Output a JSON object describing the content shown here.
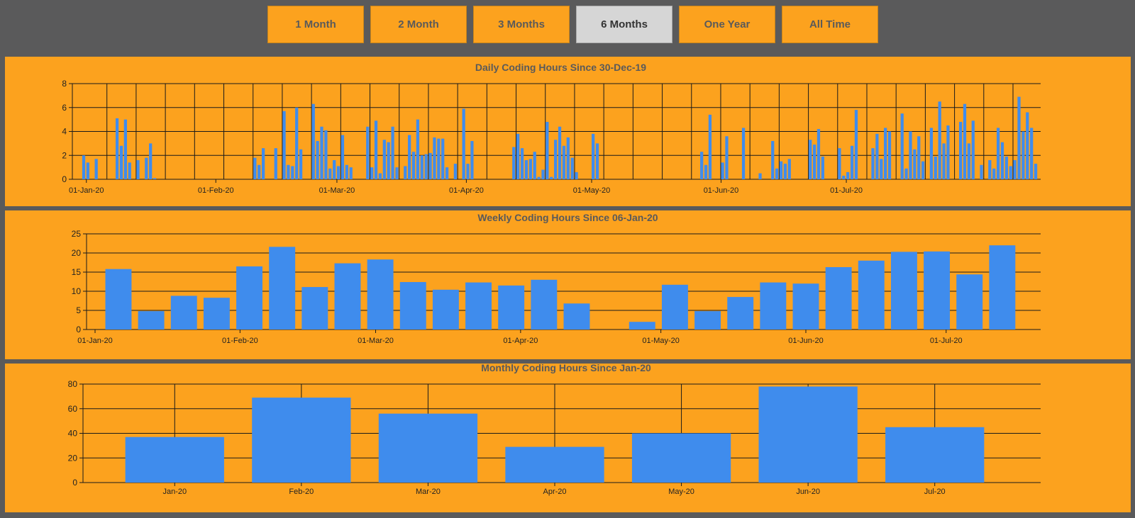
{
  "range_buttons": [
    {
      "label": "1 Month",
      "active": false
    },
    {
      "label": "2 Month",
      "active": false
    },
    {
      "label": "3 Months",
      "active": false
    },
    {
      "label": "6 Months",
      "active": true
    },
    {
      "label": "One Year",
      "active": false
    },
    {
      "label": "All Time",
      "active": false
    }
  ],
  "colors": {
    "background": "#5a5a5b",
    "panel": "#fca21e",
    "bar": "#3f8ced",
    "button_active": "#d6d6d6",
    "text": "#5a5a5a"
  },
  "chart_data": [
    {
      "type": "bar",
      "title": "Daily Coding Hours Since 30-Dec-19",
      "x_start": "2019-12-30",
      "x_tick_labels": [
        "01-Jan-20",
        "01-Feb-20",
        "01-Mar-20",
        "01-Apr-20",
        "01-May-20",
        "01-Jun-20",
        "01-Jul-20"
      ],
      "ylim": [
        0,
        8
      ],
      "yticks": [
        0,
        2,
        4,
        6,
        8
      ],
      "grid": true,
      "values": [
        0,
        2,
        1.4,
        0,
        1.7,
        0,
        0,
        0,
        0,
        5.1,
        2.8,
        5,
        1.4,
        0,
        1.6,
        0,
        1.8,
        3,
        0.1,
        0,
        0,
        0,
        0,
        0,
        0,
        0,
        0,
        0,
        0,
        0,
        0,
        0,
        0,
        0,
        0,
        0,
        0,
        0,
        0,
        0,
        0,
        0,
        1.8,
        1.2,
        2.6,
        0,
        0,
        2.6,
        0,
        5.7,
        1.2,
        1.1,
        6,
        2.5,
        0,
        0,
        6.3,
        3.2,
        4.4,
        4.1,
        0.9,
        1.6,
        1.1,
        3.7,
        1.2,
        1,
        0,
        0,
        0,
        4.4,
        1,
        4.9,
        0.5,
        3.3,
        3.1,
        4.4,
        1,
        0,
        1.1,
        3.7,
        2.3,
        5,
        2,
        2.1,
        2.2,
        3.5,
        3.4,
        3.4,
        1,
        0,
        1.3,
        0,
        5.9,
        1.3,
        3.2,
        0,
        0,
        0,
        0,
        0,
        0,
        0,
        0,
        0,
        2.7,
        3.8,
        2.6,
        1.6,
        1.7,
        2.3,
        0.2,
        0.8,
        4.8,
        0.2,
        3.3,
        4.4,
        2.8,
        3.5,
        1.8,
        0.6,
        0,
        0,
        0,
        3.8,
        3,
        0,
        0,
        0,
        0,
        0,
        0,
        0,
        0,
        0,
        0,
        0,
        0,
        0,
        0,
        0,
        0,
        0,
        0,
        0,
        0,
        0,
        0,
        0,
        0,
        2.3,
        1.2,
        5.4,
        0,
        0,
        1.4,
        3.6,
        0,
        0,
        0,
        4.3,
        0,
        0,
        0,
        0.5,
        0,
        0,
        3.2,
        0.9,
        1.5,
        1.3,
        1.7,
        0,
        0,
        0,
        0,
        3.3,
        2.9,
        4.2,
        1.9,
        0,
        0,
        0,
        2.6,
        0.3,
        0.6,
        2.8,
        5.8,
        0,
        0,
        0,
        2.6,
        3.8,
        1.7,
        4.3,
        4,
        0,
        0,
        5.5,
        0.9,
        4,
        2.5,
        3.6,
        1.5,
        0,
        4.3,
        1.9,
        6.5,
        3,
        4.5,
        0,
        0,
        4.8,
        6.3,
        3,
        4.9,
        0,
        1.2,
        0,
        1.6,
        0.9,
        4.3,
        3.1,
        1.9,
        1.1,
        1.6,
        6.9,
        4,
        5.6,
        4.3,
        1.3
      ]
    },
    {
      "type": "bar",
      "title": "Weekly Coding Hours Since 06-Jan-20",
      "x_start": "2020-01-06",
      "x_tick_labels": [
        "01-Jan-20",
        "01-Feb-20",
        "01-Mar-20",
        "01-Apr-20",
        "01-May-20",
        "01-Jun-20",
        "01-Jul-20"
      ],
      "ylim": [
        0,
        25
      ],
      "yticks": [
        0,
        5,
        10,
        15,
        20,
        25
      ],
      "grid": true,
      "values": [
        15.8,
        4.8,
        8.8,
        8.3,
        16.5,
        21.6,
        11.1,
        17.3,
        18.3,
        12.4,
        10.4,
        12.3,
        11.5,
        13,
        6.8,
        0,
        2,
        11.7,
        4.8,
        8.5,
        12.3,
        12,
        16.3,
        18,
        20.3,
        20.4,
        14.4,
        22
      ]
    },
    {
      "type": "bar",
      "title": "Monthly Coding Hours Since Jan-20",
      "categories": [
        "Jan-20",
        "Feb-20",
        "Mar-20",
        "Apr-20",
        "May-20",
        "Jun-20",
        "Jul-20"
      ],
      "ylim": [
        0,
        80
      ],
      "yticks": [
        0,
        20,
        40,
        60,
        80
      ],
      "grid": true,
      "values": [
        37,
        69,
        56,
        29,
        40,
        78,
        45
      ]
    }
  ]
}
